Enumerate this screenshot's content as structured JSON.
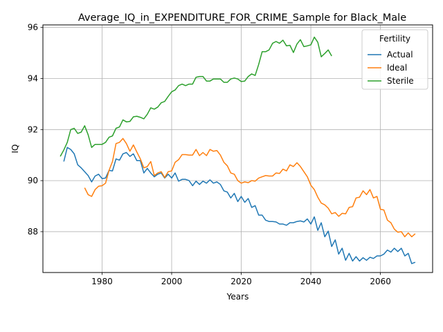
{
  "chart_data": {
    "type": "line",
    "title": "Average_IQ_in_EXPENDITURE_FOR_CRIME_Sample for Black_Male",
    "xlabel": "Years",
    "ylabel": "IQ",
    "xlim": [
      1963,
      2075
    ],
    "ylim": [
      86.4,
      96.1
    ],
    "xticks": [
      1980,
      2000,
      2020,
      2040,
      2060
    ],
    "yticks": [
      88,
      90,
      92,
      94,
      96
    ],
    "grid": true,
    "legend": {
      "title": "Fertility",
      "placement": "top-right"
    },
    "series": [
      {
        "name": "Actual",
        "color": "#1f77b4",
        "x": [
          1969,
          1970,
          1971,
          1972,
          1973,
          1974,
          1975,
          1976,
          1977,
          1978,
          1979,
          1980,
          1981,
          1982,
          1983,
          1984,
          1985,
          1986,
          1987,
          1988,
          1989,
          1990,
          1991,
          1992,
          1993,
          1994,
          1995,
          1996,
          1997,
          1998,
          1999,
          2000,
          2001,
          2002,
          2003,
          2004,
          2005,
          2006,
          2007,
          2008,
          2009,
          2010,
          2011,
          2012,
          2013,
          2014,
          2015,
          2016,
          2017,
          2018,
          2019,
          2020,
          2021,
          2022,
          2023,
          2024,
          2025,
          2026,
          2027,
          2028,
          2029,
          2030,
          2031,
          2032,
          2033,
          2034,
          2035,
          2036,
          2037,
          2038,
          2039,
          2040,
          2041,
          2042,
          2043,
          2044,
          2045,
          2046,
          2047,
          2048,
          2049,
          2050,
          2051,
          2052,
          2053,
          2054,
          2055,
          2056,
          2057,
          2058,
          2059,
          2060,
          2061,
          2062,
          2063,
          2064,
          2065,
          2066,
          2067,
          2068,
          2069,
          2070
        ],
        "values": [
          90.75,
          91.3,
          91.22,
          91.05,
          90.62,
          90.5,
          90.35,
          90.2,
          89.95,
          90.18,
          90.25,
          90.08,
          90.1,
          90.4,
          90.38,
          90.85,
          90.8,
          91.05,
          91.1,
          90.95,
          91.05,
          90.78,
          90.78,
          90.3,
          90.48,
          90.3,
          90.15,
          90.25,
          90.3,
          90.1,
          90.25,
          90.1,
          90.3,
          89.98,
          90.05,
          90.05,
          90.0,
          89.8,
          89.98,
          89.85,
          89.98,
          89.9,
          90.03,
          89.9,
          89.95,
          89.85,
          89.6,
          89.55,
          89.32,
          89.5,
          89.18,
          89.38,
          89.15,
          89.3,
          88.95,
          89.02,
          88.65,
          88.65,
          88.45,
          88.4,
          88.4,
          88.38,
          88.3,
          88.3,
          88.25,
          88.35,
          88.35,
          88.4,
          88.42,
          88.38,
          88.5,
          88.3,
          88.58,
          88.05,
          88.35,
          87.8,
          88.02,
          87.42,
          87.68,
          87.12,
          87.35,
          86.88,
          87.15,
          86.85,
          87.02,
          86.85,
          86.98,
          86.88,
          87.0,
          86.95,
          87.05,
          87.05,
          87.12,
          87.28,
          87.2,
          87.35,
          87.22,
          87.35,
          87.05,
          87.15,
          86.75,
          86.8
        ]
      },
      {
        "name": "Ideal",
        "color": "#ff7f0e",
        "x": [
          1975,
          1976,
          1977,
          1978,
          1979,
          1980,
          1981,
          1982,
          1983,
          1984,
          1985,
          1986,
          1987,
          1988,
          1989,
          1990,
          1991,
          1992,
          1993,
          1994,
          1995,
          1996,
          1997,
          1998,
          1999,
          2000,
          2001,
          2002,
          2003,
          2004,
          2005,
          2006,
          2007,
          2008,
          2009,
          2010,
          2011,
          2012,
          2013,
          2014,
          2015,
          2016,
          2017,
          2018,
          2019,
          2020,
          2021,
          2022,
          2023,
          2024,
          2025,
          2026,
          2027,
          2028,
          2029,
          2030,
          2031,
          2032,
          2033,
          2034,
          2035,
          2036,
          2037,
          2038,
          2039,
          2040,
          2041,
          2042,
          2043,
          2044,
          2045,
          2046,
          2047,
          2048,
          2049,
          2050,
          2051,
          2052,
          2053,
          2054,
          2055,
          2056,
          2057,
          2058,
          2059,
          2060,
          2061,
          2062,
          2063,
          2064,
          2065,
          2066,
          2067,
          2068,
          2069,
          2070
        ],
        "values": [
          89.72,
          89.45,
          89.38,
          89.65,
          89.78,
          89.8,
          89.9,
          90.4,
          90.75,
          91.45,
          91.5,
          91.65,
          91.45,
          91.15,
          91.4,
          91.12,
          90.85,
          90.5,
          90.55,
          90.75,
          90.2,
          90.3,
          90.35,
          90.12,
          90.35,
          90.38,
          90.72,
          90.82,
          91.02,
          91.02,
          91.0,
          91.0,
          91.22,
          90.98,
          91.1,
          90.98,
          91.22,
          91.15,
          91.18,
          91.0,
          90.72,
          90.58,
          90.3,
          90.25,
          90.0,
          89.9,
          89.95,
          89.92,
          90.0,
          89.98,
          90.1,
          90.15,
          90.2,
          90.18,
          90.18,
          90.3,
          90.28,
          90.45,
          90.38,
          90.62,
          90.55,
          90.7,
          90.55,
          90.35,
          90.15,
          89.82,
          89.65,
          89.35,
          89.12,
          89.05,
          88.92,
          88.7,
          88.75,
          88.6,
          88.72,
          88.7,
          88.95,
          88.98,
          89.32,
          89.35,
          89.6,
          89.45,
          89.65,
          89.32,
          89.38,
          88.88,
          88.85,
          88.45,
          88.35,
          88.1,
          87.98,
          88.0,
          87.8,
          87.95,
          87.8,
          87.92
        ]
      },
      {
        "name": "Sterile",
        "color": "#2ca02c",
        "x": [
          1968,
          1969,
          1970,
          1971,
          1972,
          1973,
          1974,
          1975,
          1976,
          1977,
          1978,
          1979,
          1980,
          1981,
          1982,
          1983,
          1984,
          1985,
          1986,
          1987,
          1988,
          1989,
          1990,
          1991,
          1992,
          1993,
          1994,
          1995,
          1996,
          1997,
          1998,
          1999,
          2000,
          2001,
          2002,
          2003,
          2004,
          2005,
          2006,
          2007,
          2008,
          2009,
          2010,
          2011,
          2012,
          2013,
          2014,
          2015,
          2016,
          2017,
          2018,
          2019,
          2020,
          2021,
          2022,
          2023,
          2024,
          2025,
          2026,
          2027,
          2028,
          2029,
          2030,
          2031,
          2032,
          2033,
          2034,
          2035,
          2036,
          2037,
          2038,
          2039,
          2040,
          2041,
          2042,
          2043,
          2044,
          2045,
          2046
        ],
        "values": [
          90.95,
          91.2,
          91.5,
          92.0,
          92.05,
          91.85,
          91.9,
          92.15,
          91.8,
          91.3,
          91.42,
          91.42,
          91.42,
          91.5,
          91.7,
          91.75,
          92.05,
          92.1,
          92.38,
          92.3,
          92.32,
          92.5,
          92.52,
          92.48,
          92.42,
          92.6,
          92.85,
          92.8,
          92.88,
          93.05,
          93.1,
          93.3,
          93.48,
          93.55,
          93.72,
          93.78,
          93.72,
          93.78,
          93.78,
          94.05,
          94.08,
          94.08,
          93.9,
          93.9,
          93.98,
          93.98,
          93.98,
          93.85,
          93.85,
          93.98,
          94.02,
          93.98,
          93.88,
          93.9,
          94.08,
          94.18,
          94.12,
          94.55,
          95.05,
          95.05,
          95.12,
          95.38,
          95.45,
          95.38,
          95.5,
          95.28,
          95.3,
          95.02,
          95.35,
          95.52,
          95.25,
          95.28,
          95.32,
          95.62,
          95.42,
          94.85,
          94.98,
          95.12,
          94.88
        ]
      }
    ]
  }
}
